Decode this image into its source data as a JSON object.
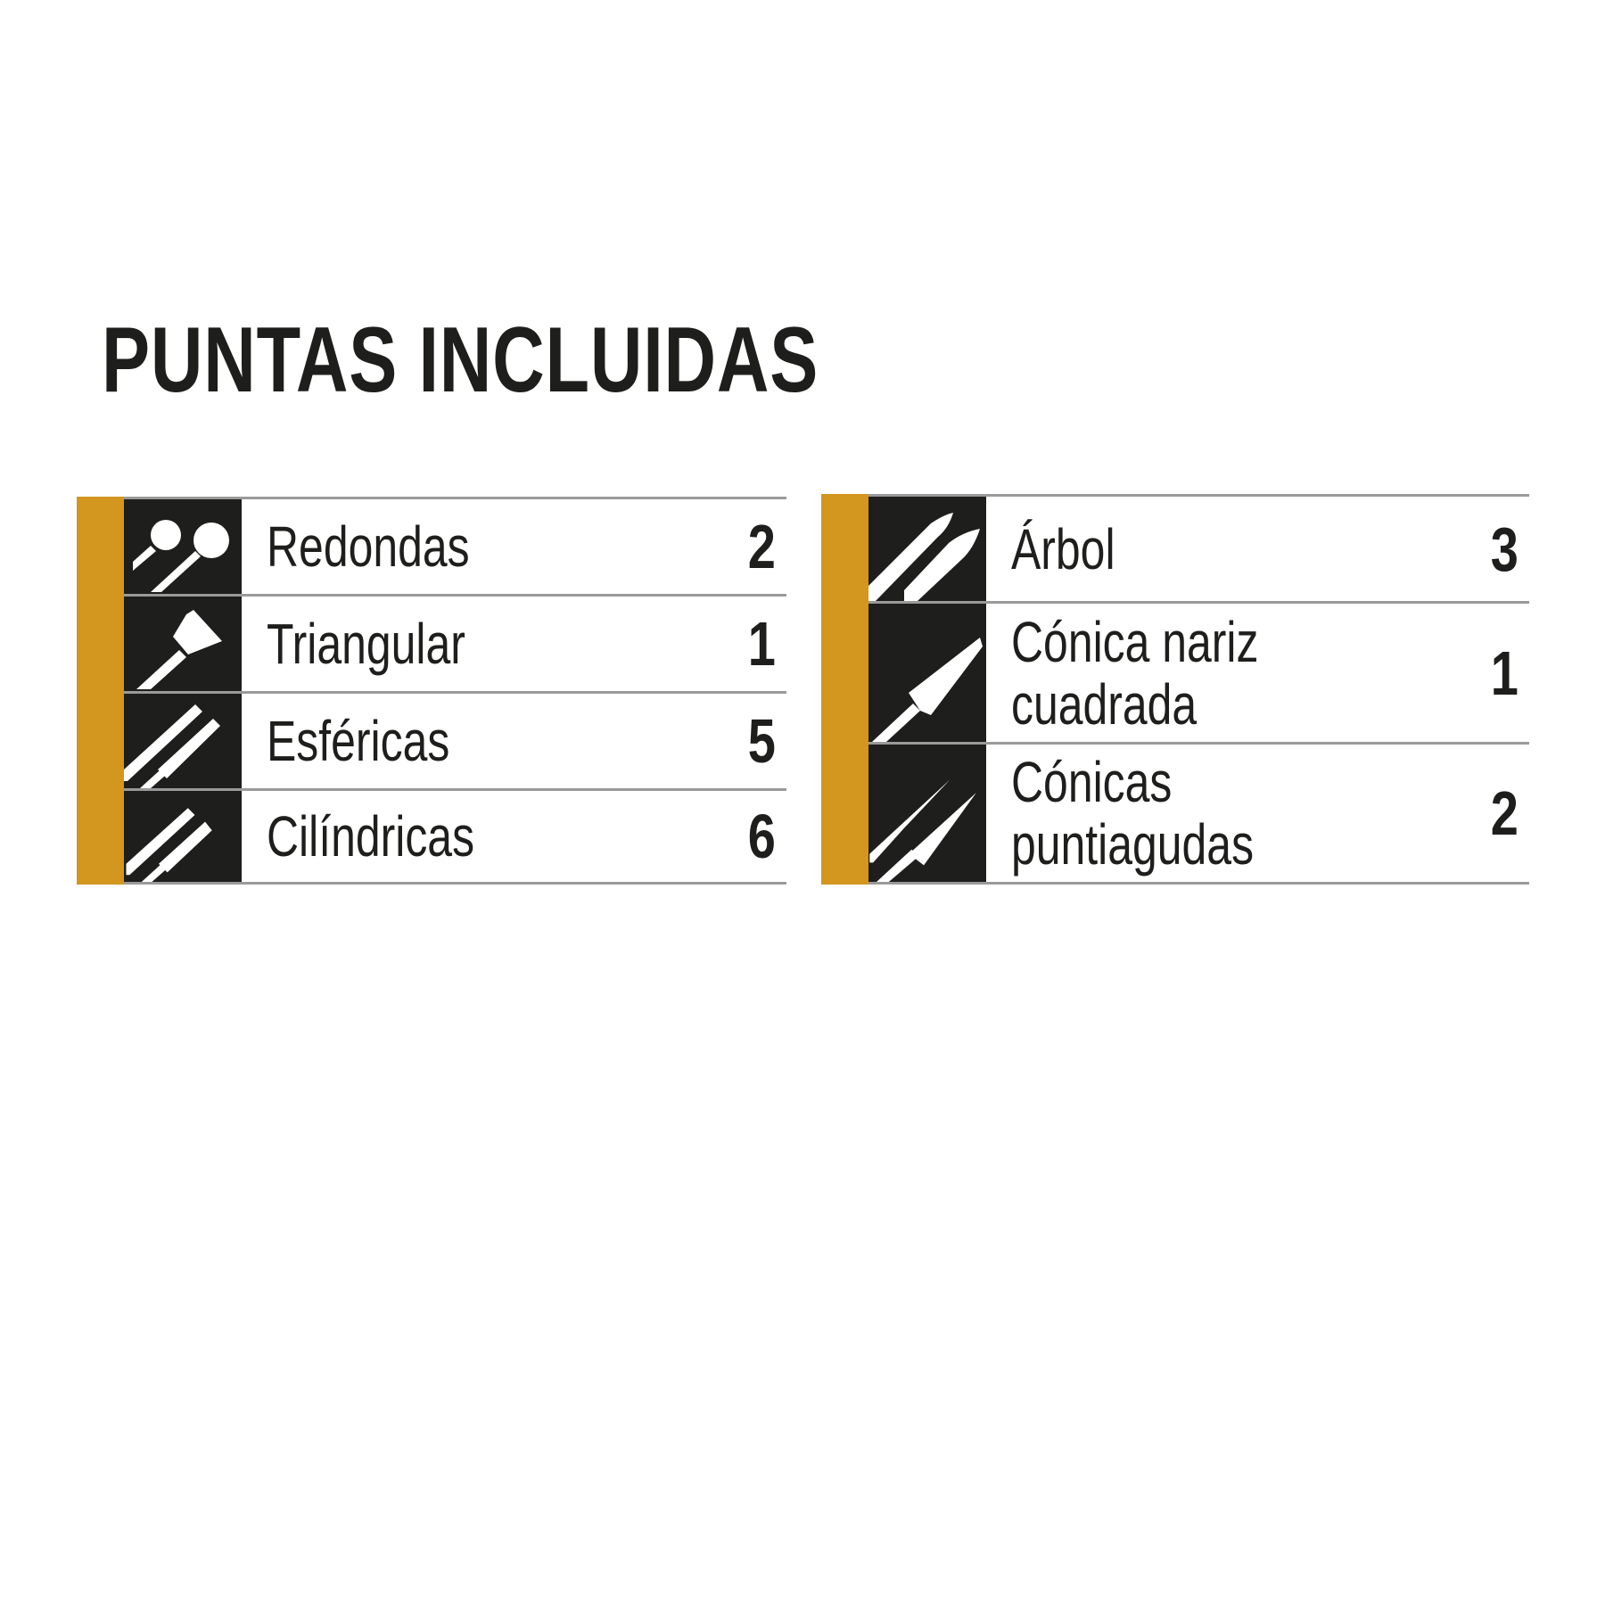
{
  "title": "PUNTAS INCLUIDAS",
  "colors": {
    "accent": "#d3961f",
    "icon_bg": "#1e1e1c",
    "divider": "#9a9a9a"
  },
  "left_table": [
    {
      "label": "Redondas",
      "count": "2",
      "icon": "round-tip-icon"
    },
    {
      "label": "Triangular",
      "count": "1",
      "icon": "triangular-tip-icon"
    },
    {
      "label": "Esféricas",
      "count": "5",
      "icon": "spherical-tip-icon"
    },
    {
      "label": "Cilíndricas",
      "count": "6",
      "icon": "cylindrical-tip-icon"
    }
  ],
  "right_table": [
    {
      "label": "Árbol",
      "count": "3",
      "icon": "tree-tip-icon"
    },
    {
      "label": "Cónica nariz\ncuadrada",
      "count": "1",
      "icon": "square-nose-cone-tip-icon"
    },
    {
      "label": "Cónicas\npuntiagudas",
      "count": "2",
      "icon": "pointed-cone-tip-icon"
    }
  ]
}
